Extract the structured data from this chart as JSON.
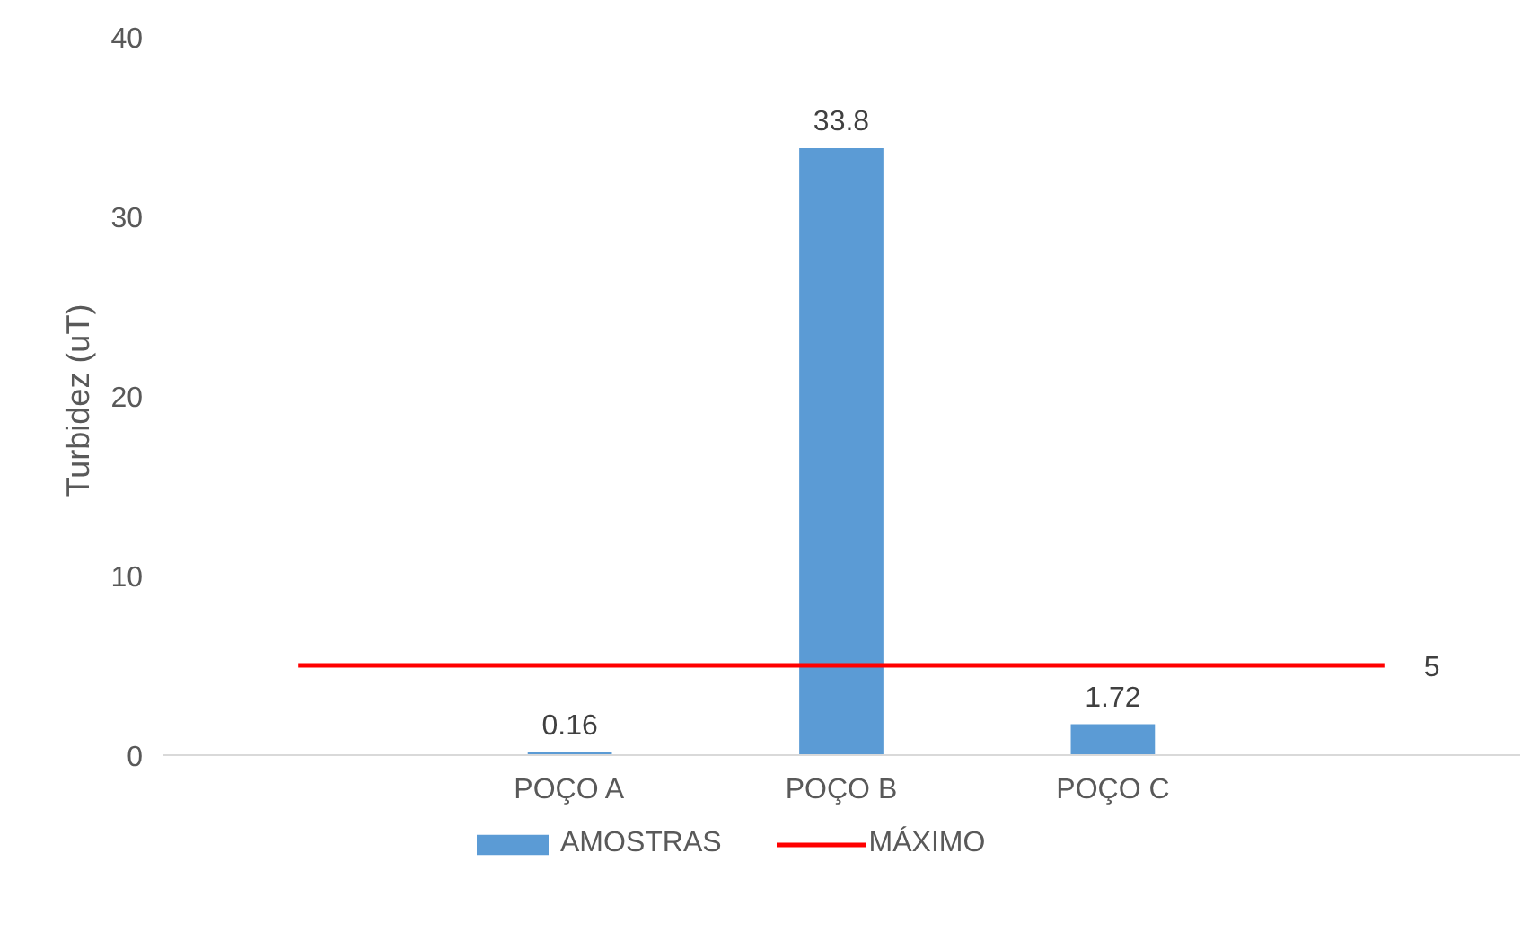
{
  "chart_data": {
    "type": "bar",
    "ylabel": "Turbidez  (uT)",
    "categories": [
      null,
      "POÇO A",
      "POÇO B",
      "POÇO C",
      null
    ],
    "series": [
      {
        "name": "AMOSTRAS",
        "color": "#5b9bd5",
        "values": [
          null,
          0.16,
          33.8,
          1.72,
          null
        ],
        "value_labels": [
          null,
          "0.16",
          "33.8",
          "1.72",
          null
        ]
      },
      {
        "name": "MÁXIMO",
        "type": "line",
        "color": "#ff0000",
        "values": [
          5,
          5,
          5,
          5,
          5
        ],
        "value_labels": [
          null,
          null,
          null,
          null,
          "5"
        ]
      }
    ],
    "ylim": [
      0,
      40
    ],
    "yticks": [
      0,
      10,
      20,
      30,
      40
    ],
    "grid": false,
    "legend": "bottom"
  }
}
